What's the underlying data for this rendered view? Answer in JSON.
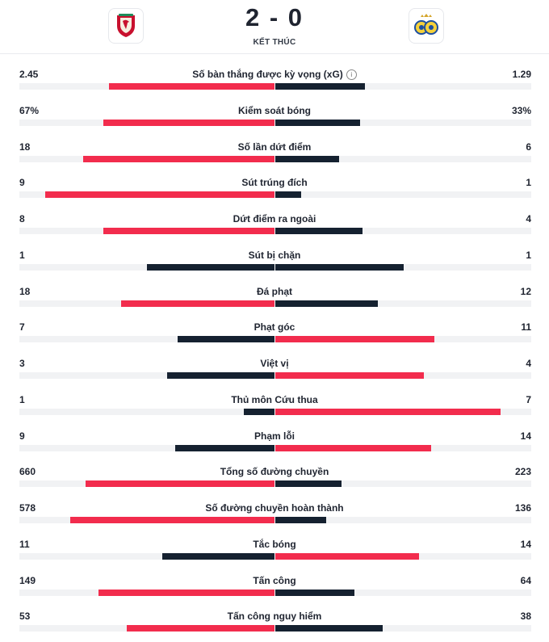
{
  "match": {
    "score": "2 - 0",
    "status": "KẾT THÚC",
    "home_logo_icon": "liverpool-crest-icon",
    "away_logo_icon": "union-saint-gilloise-crest-icon"
  },
  "colors": {
    "leader": "#f22c4d",
    "trailer": "#152130",
    "track": "#f1f2f4"
  },
  "stats": [
    {
      "label": "Số bàn thắng được kỳ vọng (xG)",
      "home": "2.45",
      "away": "1.29",
      "home_fill": 0.65,
      "away_fill": 0.35,
      "leader": "home",
      "info": true
    },
    {
      "label": "Kiểm soát bóng",
      "home": "67%",
      "away": "33%",
      "home_fill": 0.67,
      "away_fill": 0.33,
      "leader": "home"
    },
    {
      "label": "Số lần dứt điểm",
      "home": "18",
      "away": "6",
      "home_fill": 0.75,
      "away_fill": 0.25,
      "leader": "home"
    },
    {
      "label": "Sút trúng đích",
      "home": "9",
      "away": "1",
      "home_fill": 0.9,
      "away_fill": 0.1,
      "leader": "home"
    },
    {
      "label": "Dứt điểm ra ngoài",
      "home": "8",
      "away": "4",
      "home_fill": 0.67,
      "away_fill": 0.34,
      "leader": "home"
    },
    {
      "label": "Sút bị chặn",
      "home": "1",
      "away": "1",
      "home_fill": 0.5,
      "away_fill": 0.5,
      "leader": "none"
    },
    {
      "label": "Đá phạt",
      "home": "18",
      "away": "12",
      "home_fill": 0.6,
      "away_fill": 0.4,
      "leader": "home"
    },
    {
      "label": "Phạt góc",
      "home": "7",
      "away": "11",
      "home_fill": 0.38,
      "away_fill": 0.62,
      "leader": "away"
    },
    {
      "label": "Việt vị",
      "home": "3",
      "away": "4",
      "home_fill": 0.42,
      "away_fill": 0.58,
      "leader": "away"
    },
    {
      "label": "Thủ môn Cứu thua",
      "home": "1",
      "away": "7",
      "home_fill": 0.12,
      "away_fill": 0.88,
      "leader": "away"
    },
    {
      "label": "Phạm lỗi",
      "home": "9",
      "away": "14",
      "home_fill": 0.39,
      "away_fill": 0.61,
      "leader": "away"
    },
    {
      "label": "Tổng số đường chuyền",
      "home": "660",
      "away": "223",
      "home_fill": 0.74,
      "away_fill": 0.26,
      "leader": "home"
    },
    {
      "label": "Số đường chuyền hoàn thành",
      "home": "578",
      "away": "136",
      "home_fill": 0.8,
      "away_fill": 0.2,
      "leader": "home"
    },
    {
      "label": "Tắc bóng",
      "home": "11",
      "away": "14",
      "home_fill": 0.44,
      "away_fill": 0.56,
      "leader": "away"
    },
    {
      "label": "Tấn công",
      "home": "149",
      "away": "64",
      "home_fill": 0.69,
      "away_fill": 0.31,
      "leader": "home"
    },
    {
      "label": "Tấn công nguy hiểm",
      "home": "53",
      "away": "38",
      "home_fill": 0.58,
      "away_fill": 0.42,
      "leader": "home"
    }
  ]
}
